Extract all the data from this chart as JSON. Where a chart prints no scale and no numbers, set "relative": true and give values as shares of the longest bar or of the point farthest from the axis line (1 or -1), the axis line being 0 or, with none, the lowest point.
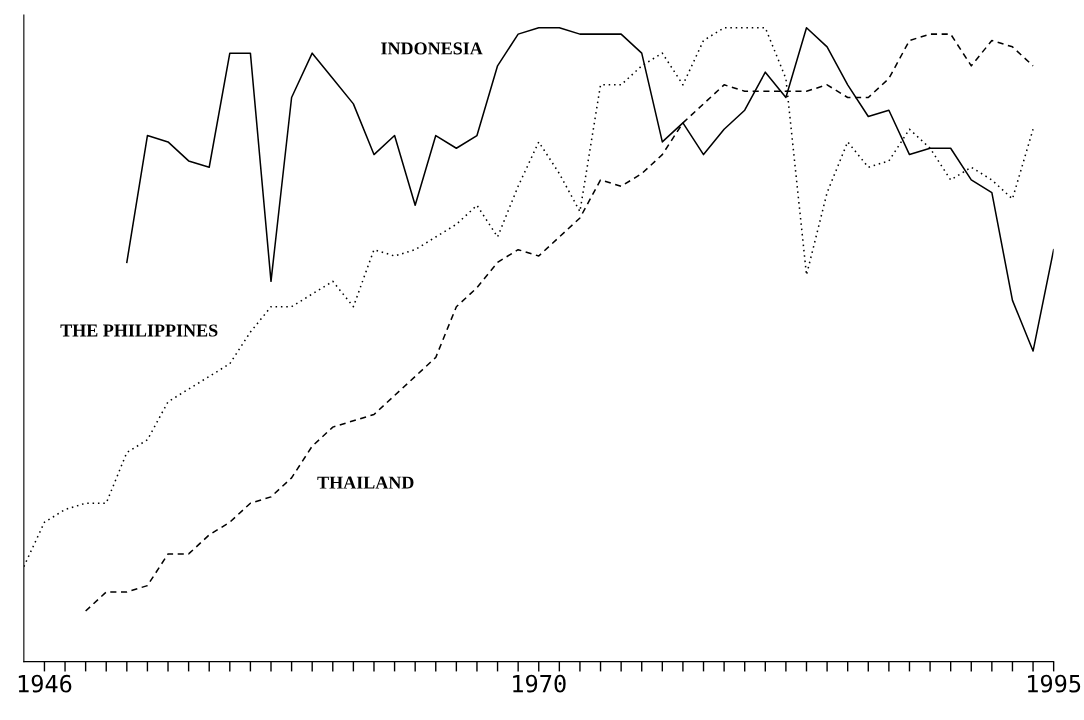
{
  "chart_data": {
    "type": "line",
    "relative": true,
    "xlim": [
      1945,
      1995
    ],
    "xticks": [
      1946,
      {
        "value": 1947,
        "label": null
      },
      {
        "value": 1948,
        "label": null
      },
      {
        "value": 1949,
        "label": null
      },
      {
        "value": 1950,
        "label": null
      },
      {
        "value": 1951,
        "label": null
      },
      {
        "value": 1952,
        "label": null
      },
      {
        "value": 1953,
        "label": null
      },
      {
        "value": 1954,
        "label": null
      },
      {
        "value": 1955,
        "label": null
      },
      {
        "value": 1956,
        "label": null
      },
      {
        "value": 1957,
        "label": null
      },
      {
        "value": 1958,
        "label": null
      },
      {
        "value": 1959,
        "label": null
      },
      {
        "value": 1960,
        "label": null
      },
      {
        "value": 1961,
        "label": null
      },
      {
        "value": 1962,
        "label": null
      },
      {
        "value": 1963,
        "label": null
      },
      {
        "value": 1964,
        "label": null
      },
      {
        "value": 1965,
        "label": null
      },
      {
        "value": 1966,
        "label": null
      },
      {
        "value": 1967,
        "label": null
      },
      {
        "value": 1968,
        "label": null
      },
      {
        "value": 1969,
        "label": null
      },
      1970,
      {
        "value": 1971,
        "label": null
      },
      {
        "value": 1972,
        "label": null
      },
      {
        "value": 1973,
        "label": null
      },
      {
        "value": 1974,
        "label": null
      },
      {
        "value": 1975,
        "label": null
      },
      {
        "value": 1976,
        "label": null
      },
      {
        "value": 1977,
        "label": null
      },
      {
        "value": 1978,
        "label": null
      },
      {
        "value": 1979,
        "label": null
      },
      {
        "value": 1980,
        "label": null
      },
      {
        "value": 1981,
        "label": null
      },
      {
        "value": 1982,
        "label": null
      },
      {
        "value": 1983,
        "label": null
      },
      {
        "value": 1984,
        "label": null
      },
      {
        "value": 1985,
        "label": null
      },
      {
        "value": 1986,
        "label": null
      },
      {
        "value": 1987,
        "label": null
      },
      {
        "value": 1988,
        "label": null
      },
      {
        "value": 1989,
        "label": null
      },
      {
        "value": 1990,
        "label": null
      },
      {
        "value": 1991,
        "label": null
      },
      {
        "value": 1992,
        "label": null
      },
      {
        "value": 1993,
        "label": null
      },
      {
        "value": 1994,
        "label": null
      },
      1995
    ],
    "tick_labels": "x",
    "series": [
      {
        "name": "INDONESIA",
        "color": "#000000",
        "line_style": "solid",
        "x": [
          1950,
          1951,
          1952,
          1953,
          1954,
          1955,
          1956,
          1957,
          1958,
          1959,
          1960,
          1961,
          1962,
          1963,
          1964,
          1965,
          1966,
          1967,
          1968,
          1969,
          1970,
          1971,
          1972,
          1973,
          1974,
          1975,
          1976,
          1977,
          1978,
          1979,
          1980,
          1981,
          1982,
          1983,
          1984,
          1985,
          1986,
          1987,
          1988,
          1989,
          1990,
          1991,
          1992,
          1993,
          1994,
          1995
        ],
        "values": [
          0.63,
          0.83,
          0.82,
          0.79,
          0.78,
          0.96,
          0.96,
          0.6,
          0.89,
          0.96,
          0.92,
          0.88,
          0.8,
          0.83,
          0.72,
          0.83,
          0.81,
          0.83,
          0.94,
          0.99,
          1.0,
          1.0,
          0.99,
          0.99,
          0.99,
          0.96,
          0.82,
          0.85,
          0.8,
          0.84,
          0.87,
          0.93,
          0.89,
          1.0,
          0.97,
          0.91,
          0.86,
          0.87,
          0.8,
          0.81,
          0.81,
          0.76,
          0.74,
          0.57,
          0.49,
          0.65
        ]
      },
      {
        "name": "THE PHILIPPINES",
        "color": "#000000",
        "line_style": "dotted",
        "x": [
          1945,
          1946,
          1947,
          1948,
          1949,
          1950,
          1951,
          1952,
          1953,
          1954,
          1955,
          1956,
          1957,
          1958,
          1959,
          1960,
          1961,
          1962,
          1963,
          1964,
          1965,
          1966,
          1967,
          1968,
          1969,
          1970,
          1971,
          1972,
          1973,
          1974,
          1975,
          1976,
          1977,
          1978,
          1979,
          1980,
          1981,
          1982,
          1983,
          1984,
          1985,
          1986,
          1987,
          1988,
          1989,
          1990,
          1991,
          1992,
          1993,
          1994
        ],
        "values": [
          0.15,
          0.22,
          0.24,
          0.25,
          0.25,
          0.33,
          0.35,
          0.41,
          0.43,
          0.45,
          0.47,
          0.52,
          0.56,
          0.56,
          0.58,
          0.6,
          0.56,
          0.65,
          0.64,
          0.65,
          0.67,
          0.69,
          0.72,
          0.67,
          0.75,
          0.82,
          0.77,
          0.71,
          0.91,
          0.91,
          0.94,
          0.96,
          0.91,
          0.98,
          1.0,
          1.0,
          1.0,
          0.92,
          0.61,
          0.74,
          0.82,
          0.78,
          0.79,
          0.84,
          0.81,
          0.76,
          0.78,
          0.76,
          0.73,
          0.84
        ]
      },
      {
        "name": "THAILAND",
        "color": "#000000",
        "line_style": "dashed",
        "x": [
          1948,
          1949,
          1950,
          1951,
          1952,
          1953,
          1954,
          1955,
          1956,
          1957,
          1958,
          1959,
          1960,
          1961,
          1962,
          1963,
          1964,
          1965,
          1966,
          1967,
          1968,
          1969,
          1970,
          1971,
          1972,
          1973,
          1974,
          1975,
          1976,
          1977,
          1978,
          1979,
          1980,
          1981,
          1982,
          1983,
          1984,
          1985,
          1986,
          1987,
          1988,
          1989,
          1990,
          1991,
          1992,
          1993,
          1994
        ],
        "values": [
          0.08,
          0.11,
          0.11,
          0.12,
          0.17,
          0.17,
          0.2,
          0.22,
          0.25,
          0.26,
          0.29,
          0.34,
          0.37,
          0.38,
          0.39,
          0.42,
          0.45,
          0.48,
          0.56,
          0.59,
          0.63,
          0.65,
          0.64,
          0.67,
          0.7,
          0.76,
          0.75,
          0.77,
          0.8,
          0.85,
          0.88,
          0.91,
          0.9,
          0.9,
          0.9,
          0.9,
          0.91,
          0.89,
          0.89,
          0.92,
          0.98,
          0.99,
          0.99,
          0.94,
          0.98,
          0.97,
          0.94
        ]
      }
    ]
  }
}
